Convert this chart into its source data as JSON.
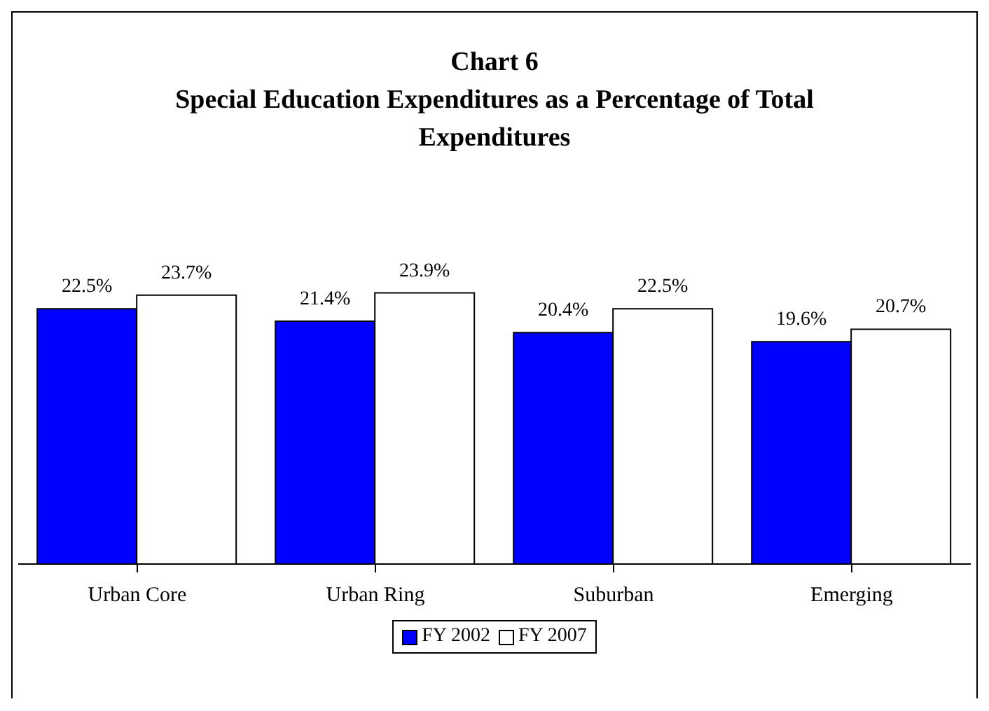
{
  "chart_data": {
    "type": "bar",
    "title": "Chart 6",
    "subtitle": "Special Education Expenditures as a Percentage of Total Expenditures",
    "categories": [
      "Urban Core",
      "Urban Ring",
      "Suburban",
      "Emerging"
    ],
    "series": [
      {
        "name": "FY 2002",
        "color": "#0000ff",
        "values": [
          22.5,
          21.4,
          20.4,
          19.6
        ],
        "value_labels": [
          "22.5%",
          "21.4%",
          "20.4%",
          "19.6%"
        ]
      },
      {
        "name": "FY 2007",
        "color": "#ffffff",
        "values": [
          23.7,
          23.9,
          22.5,
          20.7
        ],
        "value_labels": [
          "23.7%",
          "23.9%",
          "22.5%",
          "20.7%"
        ]
      }
    ],
    "grid": false,
    "legend": "bottom"
  }
}
